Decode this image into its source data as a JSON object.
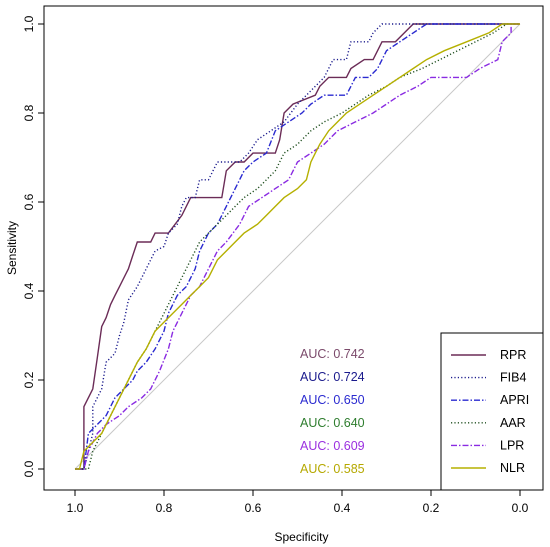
{
  "chart_data": {
    "type": "line",
    "xlabel": "Specificity",
    "ylabel": "Sensitivity",
    "xlim": [
      1.0,
      0.0
    ],
    "ylim": [
      0.0,
      1.0
    ],
    "x_ticks": [
      "1.0",
      "0.8",
      "0.6",
      "0.4",
      "0.2",
      "0.0"
    ],
    "y_ticks": [
      "0.0",
      "0.2",
      "0.4",
      "0.6",
      "0.8",
      "1.0"
    ],
    "reference_line": {
      "from": [
        1.0,
        0.0
      ],
      "to": [
        0.0,
        1.0
      ],
      "color": "#c8c8c8"
    },
    "legend_position": "bottom-right",
    "series": [
      {
        "name": "RPR",
        "color": "#6b2c57",
        "dash": "solid",
        "auc_label": "AUC: 0.742",
        "auc_color": "#7b4a6b",
        "points": [
          [
            1.0,
            0.0
          ],
          [
            0.98,
            0.0
          ],
          [
            0.98,
            0.14
          ],
          [
            0.96,
            0.18
          ],
          [
            0.95,
            0.25
          ],
          [
            0.94,
            0.32
          ],
          [
            0.93,
            0.34
          ],
          [
            0.92,
            0.37
          ],
          [
            0.91,
            0.39
          ],
          [
            0.9,
            0.41
          ],
          [
            0.88,
            0.45
          ],
          [
            0.87,
            0.48
          ],
          [
            0.86,
            0.51
          ],
          [
            0.83,
            0.51
          ],
          [
            0.82,
            0.53
          ],
          [
            0.79,
            0.53
          ],
          [
            0.76,
            0.57
          ],
          [
            0.74,
            0.61
          ],
          [
            0.67,
            0.61
          ],
          [
            0.66,
            0.67
          ],
          [
            0.64,
            0.69
          ],
          [
            0.62,
            0.69
          ],
          [
            0.6,
            0.71
          ],
          [
            0.55,
            0.71
          ],
          [
            0.54,
            0.74
          ],
          [
            0.53,
            0.8
          ],
          [
            0.51,
            0.82
          ],
          [
            0.46,
            0.84
          ],
          [
            0.45,
            0.86
          ],
          [
            0.43,
            0.88
          ],
          [
            0.39,
            0.88
          ],
          [
            0.38,
            0.9
          ],
          [
            0.35,
            0.92
          ],
          [
            0.33,
            0.92
          ],
          [
            0.31,
            0.96
          ],
          [
            0.28,
            0.96
          ],
          [
            0.26,
            0.98
          ],
          [
            0.24,
            1.0
          ],
          [
            0.0,
            1.0
          ]
        ]
      },
      {
        "name": "FIB4",
        "color": "#1a1a8c",
        "dash": "1.2,2.2",
        "auc_label": "AUC: 0.724",
        "auc_color": "#1a1a8c",
        "points": [
          [
            1.0,
            0.0
          ],
          [
            0.98,
            0.0
          ],
          [
            0.97,
            0.04
          ],
          [
            0.96,
            0.08
          ],
          [
            0.96,
            0.14
          ],
          [
            0.94,
            0.18
          ],
          [
            0.93,
            0.24
          ],
          [
            0.91,
            0.26
          ],
          [
            0.9,
            0.3
          ],
          [
            0.89,
            0.33
          ],
          [
            0.88,
            0.38
          ],
          [
            0.86,
            0.41
          ],
          [
            0.84,
            0.45
          ],
          [
            0.82,
            0.49
          ],
          [
            0.8,
            0.5
          ],
          [
            0.79,
            0.53
          ],
          [
            0.77,
            0.55
          ],
          [
            0.76,
            0.59
          ],
          [
            0.75,
            0.61
          ],
          [
            0.73,
            0.61
          ],
          [
            0.72,
            0.65
          ],
          [
            0.7,
            0.65
          ],
          [
            0.68,
            0.69
          ],
          [
            0.63,
            0.69
          ],
          [
            0.61,
            0.71
          ],
          [
            0.59,
            0.74
          ],
          [
            0.56,
            0.76
          ],
          [
            0.53,
            0.78
          ],
          [
            0.5,
            0.82
          ],
          [
            0.46,
            0.86
          ],
          [
            0.44,
            0.88
          ],
          [
            0.42,
            0.92
          ],
          [
            0.39,
            0.92
          ],
          [
            0.38,
            0.96
          ],
          [
            0.34,
            0.96
          ],
          [
            0.33,
            0.98
          ],
          [
            0.31,
            1.0
          ],
          [
            0.0,
            1.0
          ]
        ]
      },
      {
        "name": "APRI",
        "color": "#2a2ad0",
        "dash": "6,2,1.5,2",
        "auc_label": "AUC: 0.650",
        "auc_color": "#2a2ad0",
        "points": [
          [
            1.0,
            0.0
          ],
          [
            0.98,
            0.0
          ],
          [
            0.97,
            0.08
          ],
          [
            0.95,
            0.1
          ],
          [
            0.93,
            0.12
          ],
          [
            0.91,
            0.16
          ],
          [
            0.89,
            0.18
          ],
          [
            0.87,
            0.2
          ],
          [
            0.86,
            0.22
          ],
          [
            0.84,
            0.24
          ],
          [
            0.82,
            0.27
          ],
          [
            0.8,
            0.31
          ],
          [
            0.79,
            0.35
          ],
          [
            0.77,
            0.39
          ],
          [
            0.75,
            0.41
          ],
          [
            0.73,
            0.45
          ],
          [
            0.72,
            0.49
          ],
          [
            0.7,
            0.53
          ],
          [
            0.68,
            0.55
          ],
          [
            0.66,
            0.59
          ],
          [
            0.64,
            0.63
          ],
          [
            0.62,
            0.67
          ],
          [
            0.6,
            0.69
          ],
          [
            0.57,
            0.71
          ],
          [
            0.55,
            0.76
          ],
          [
            0.52,
            0.78
          ],
          [
            0.49,
            0.8
          ],
          [
            0.47,
            0.82
          ],
          [
            0.44,
            0.84
          ],
          [
            0.39,
            0.84
          ],
          [
            0.37,
            0.88
          ],
          [
            0.34,
            0.88
          ],
          [
            0.32,
            0.9
          ],
          [
            0.3,
            0.94
          ],
          [
            0.27,
            0.96
          ],
          [
            0.24,
            0.98
          ],
          [
            0.21,
            1.0
          ],
          [
            0.0,
            1.0
          ]
        ]
      },
      {
        "name": "AAR",
        "color": "#1f4f1f",
        "dash": "1.2,2.2",
        "auc_label": "AUC: 0.640",
        "auc_color": "#2e7d2e",
        "points": [
          [
            1.0,
            0.0
          ],
          [
            0.97,
            0.0
          ],
          [
            0.96,
            0.04
          ],
          [
            0.94,
            0.08
          ],
          [
            0.92,
            0.12
          ],
          [
            0.9,
            0.16
          ],
          [
            0.88,
            0.2
          ],
          [
            0.86,
            0.24
          ],
          [
            0.84,
            0.27
          ],
          [
            0.82,
            0.31
          ],
          [
            0.8,
            0.35
          ],
          [
            0.78,
            0.39
          ],
          [
            0.76,
            0.43
          ],
          [
            0.74,
            0.47
          ],
          [
            0.72,
            0.51
          ],
          [
            0.7,
            0.53
          ],
          [
            0.68,
            0.55
          ],
          [
            0.66,
            0.57
          ],
          [
            0.64,
            0.59
          ],
          [
            0.62,
            0.61
          ],
          [
            0.59,
            0.63
          ],
          [
            0.57,
            0.65
          ],
          [
            0.55,
            0.67
          ],
          [
            0.53,
            0.71
          ],
          [
            0.5,
            0.73
          ],
          [
            0.47,
            0.76
          ],
          [
            0.44,
            0.78
          ],
          [
            0.4,
            0.8
          ],
          [
            0.37,
            0.82
          ],
          [
            0.34,
            0.84
          ],
          [
            0.3,
            0.86
          ],
          [
            0.27,
            0.88
          ],
          [
            0.22,
            0.9
          ],
          [
            0.18,
            0.92
          ],
          [
            0.14,
            0.94
          ],
          [
            0.1,
            0.96
          ],
          [
            0.06,
            0.98
          ],
          [
            0.03,
            1.0
          ],
          [
            0.0,
            1.0
          ]
        ]
      },
      {
        "name": "LPR",
        "color": "#8a2be2",
        "dash": "6,2,1.5,2",
        "auc_label": "AUC: 0.609",
        "auc_color": "#9b30e0",
        "points": [
          [
            1.0,
            0.0
          ],
          [
            0.98,
            0.0
          ],
          [
            0.97,
            0.04
          ],
          [
            0.95,
            0.08
          ],
          [
            0.93,
            0.1
          ],
          [
            0.9,
            0.12
          ],
          [
            0.88,
            0.14
          ],
          [
            0.85,
            0.16
          ],
          [
            0.83,
            0.18
          ],
          [
            0.81,
            0.22
          ],
          [
            0.79,
            0.27
          ],
          [
            0.78,
            0.31
          ],
          [
            0.76,
            0.35
          ],
          [
            0.74,
            0.39
          ],
          [
            0.72,
            0.41
          ],
          [
            0.7,
            0.45
          ],
          [
            0.68,
            0.49
          ],
          [
            0.66,
            0.51
          ],
          [
            0.63,
            0.55
          ],
          [
            0.61,
            0.59
          ],
          [
            0.58,
            0.61
          ],
          [
            0.55,
            0.63
          ],
          [
            0.52,
            0.65
          ],
          [
            0.5,
            0.69
          ],
          [
            0.47,
            0.71
          ],
          [
            0.44,
            0.73
          ],
          [
            0.41,
            0.76
          ],
          [
            0.37,
            0.78
          ],
          [
            0.33,
            0.8
          ],
          [
            0.3,
            0.82
          ],
          [
            0.27,
            0.84
          ],
          [
            0.23,
            0.86
          ],
          [
            0.2,
            0.88
          ],
          [
            0.12,
            0.88
          ],
          [
            0.09,
            0.9
          ],
          [
            0.05,
            0.92
          ],
          [
            0.04,
            0.96
          ],
          [
            0.02,
            0.98
          ],
          [
            0.02,
            1.0
          ],
          [
            0.0,
            1.0
          ]
        ]
      },
      {
        "name": "NLR",
        "color": "#b5b000",
        "dash": "solid",
        "auc_label": "AUC: 0.585",
        "auc_color": "#b5a800",
        "points": [
          [
            1.0,
            0.0
          ],
          [
            0.99,
            0.0
          ],
          [
            0.98,
            0.04
          ],
          [
            0.96,
            0.06
          ],
          [
            0.94,
            0.08
          ],
          [
            0.92,
            0.12
          ],
          [
            0.9,
            0.16
          ],
          [
            0.88,
            0.2
          ],
          [
            0.86,
            0.24
          ],
          [
            0.84,
            0.27
          ],
          [
            0.82,
            0.31
          ],
          [
            0.8,
            0.33
          ],
          [
            0.78,
            0.35
          ],
          [
            0.76,
            0.37
          ],
          [
            0.74,
            0.39
          ],
          [
            0.72,
            0.41
          ],
          [
            0.7,
            0.43
          ],
          [
            0.68,
            0.47
          ],
          [
            0.66,
            0.49
          ],
          [
            0.64,
            0.51
          ],
          [
            0.62,
            0.53
          ],
          [
            0.59,
            0.55
          ],
          [
            0.57,
            0.57
          ],
          [
            0.55,
            0.59
          ],
          [
            0.53,
            0.61
          ],
          [
            0.5,
            0.63
          ],
          [
            0.48,
            0.65
          ],
          [
            0.47,
            0.69
          ],
          [
            0.46,
            0.71
          ],
          [
            0.45,
            0.73
          ],
          [
            0.43,
            0.76
          ],
          [
            0.41,
            0.78
          ],
          [
            0.39,
            0.8
          ],
          [
            0.36,
            0.82
          ],
          [
            0.33,
            0.84
          ],
          [
            0.3,
            0.86
          ],
          [
            0.27,
            0.88
          ],
          [
            0.24,
            0.9
          ],
          [
            0.21,
            0.92
          ],
          [
            0.17,
            0.94
          ],
          [
            0.12,
            0.96
          ],
          [
            0.07,
            0.98
          ],
          [
            0.04,
            1.0
          ],
          [
            0.0,
            1.0
          ]
        ]
      }
    ]
  }
}
